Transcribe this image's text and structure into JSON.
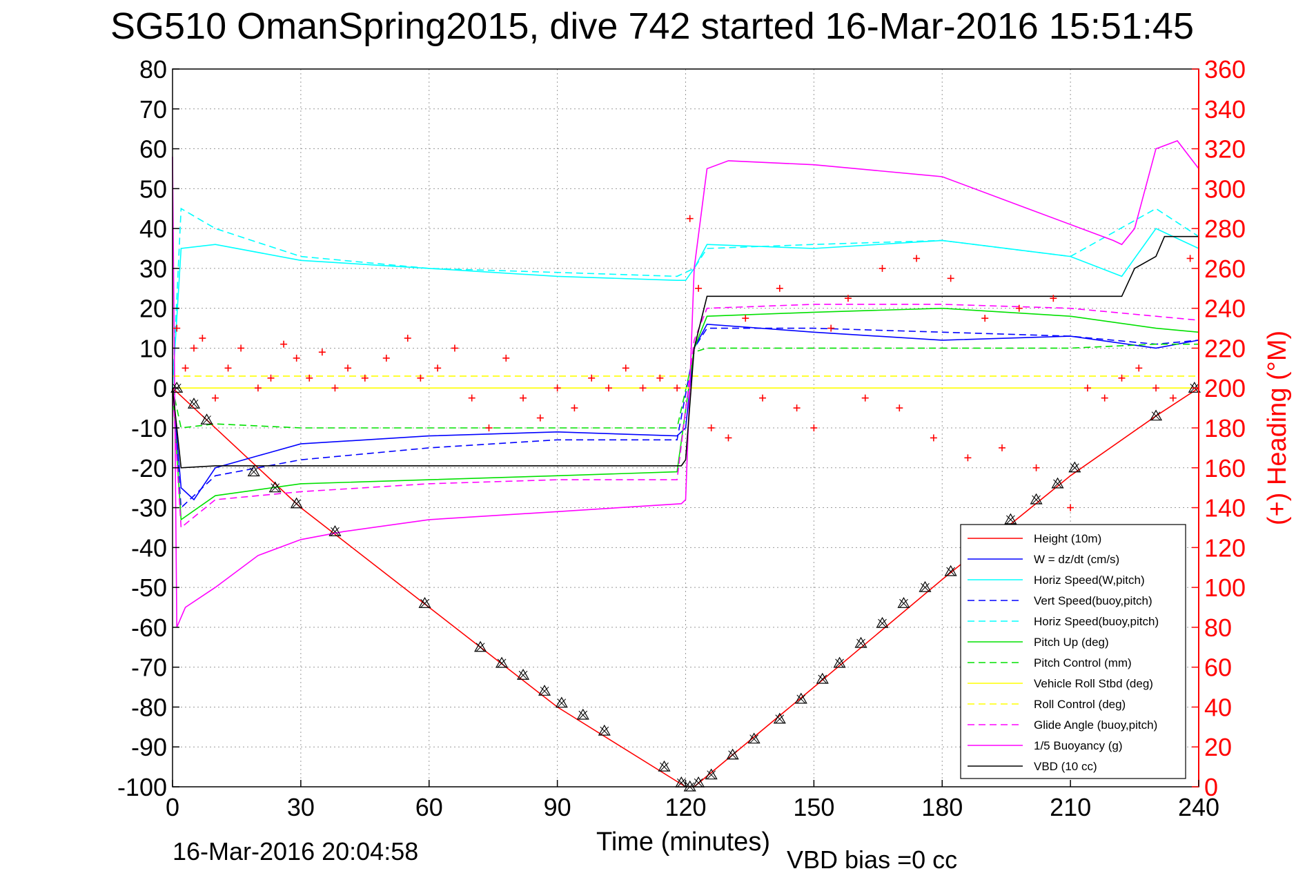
{
  "chart_data": {
    "type": "line",
    "title": "SG510 OmanSpring2015, dive 742 started 16-Mar-2016 15:51:45",
    "xlabel": "Time (minutes)",
    "ylabel_right": "(+) Heading (°M)",
    "footer_timestamp": "16-Mar-2016 20:04:58",
    "footer_note": "VBD bias =0 cc",
    "xlim": [
      0,
      240
    ],
    "ylim_left": [
      -100,
      80
    ],
    "ylim_right": [
      0,
      360
    ],
    "grid": true,
    "legend_position": "bottom-right",
    "x_ticks": [
      "0",
      "30",
      "60",
      "90",
      "120",
      "150",
      "180",
      "210",
      "240"
    ],
    "y_ticks_left": [
      "80",
      "70",
      "60",
      "50",
      "40",
      "30",
      "20",
      "10",
      "0",
      "-10",
      "-20",
      "-30",
      "-40",
      "-50",
      "-60",
      "-70",
      "-80",
      "-90",
      "-100"
    ],
    "y_ticks_right": [
      "360",
      "340",
      "320",
      "300",
      "280",
      "260",
      "240",
      "220",
      "200",
      "180",
      "160",
      "140",
      "120",
      "100",
      "80",
      "60",
      "40",
      "20",
      "0"
    ],
    "colors": {
      "red": "#ff0000",
      "blue": "#0000ff",
      "cyan": "#00ffff",
      "green": "#00e000",
      "yellow": "#ffff00",
      "magenta": "#ff00ff",
      "black": "#000000"
    },
    "series": [
      {
        "name": "Height (10m)",
        "color": "#ff0000",
        "dash": "solid",
        "x": [
          0,
          30,
          60,
          90,
          120,
          122,
          150,
          180,
          210,
          230,
          240
        ],
        "y": [
          0,
          -30,
          -55,
          -80,
          -100,
          -100,
          -75,
          -48,
          -22,
          -7,
          0
        ]
      },
      {
        "name": "W = dz/dt (cm/s)",
        "color": "#0000ff",
        "dash": "solid",
        "x": [
          0,
          2,
          5,
          10,
          20,
          30,
          60,
          90,
          118,
          120,
          122,
          125,
          150,
          180,
          210,
          230,
          240
        ],
        "y": [
          0,
          -25,
          -28,
          -20,
          -17,
          -14,
          -12,
          -11,
          -12,
          -10,
          10,
          16,
          14,
          12,
          13,
          10,
          12
        ]
      },
      {
        "name": "Horiz Speed(W,pitch)",
        "color": "#00ffff",
        "dash": "solid",
        "x": [
          0,
          2,
          10,
          30,
          60,
          90,
          118,
          120,
          122,
          125,
          150,
          180,
          210,
          222,
          230,
          240
        ],
        "y": [
          0,
          35,
          36,
          32,
          30,
          28,
          27,
          27,
          30,
          36,
          35,
          37,
          33,
          28,
          40,
          35
        ]
      },
      {
        "name": "Vert Speed(buoy,pitch)",
        "color": "#0000ff",
        "dash": "dashed",
        "x": [
          0,
          2,
          10,
          30,
          60,
          90,
          118,
          122,
          125,
          150,
          180,
          210,
          230,
          240
        ],
        "y": [
          0,
          -30,
          -22,
          -18,
          -15,
          -13,
          -13,
          10,
          15,
          15,
          14,
          13,
          11,
          12
        ]
      },
      {
        "name": "Horiz Speed(buoy,pitch)",
        "color": "#00ffff",
        "dash": "dashed",
        "x": [
          0,
          2,
          10,
          30,
          60,
          90,
          118,
          122,
          125,
          150,
          180,
          210,
          230,
          240
        ],
        "y": [
          0,
          45,
          40,
          33,
          30,
          29,
          28,
          30,
          35,
          36,
          37,
          33,
          45,
          38
        ]
      },
      {
        "name": "Pitch Up (deg)",
        "color": "#00e000",
        "dash": "solid",
        "x": [
          0,
          2,
          10,
          30,
          60,
          90,
          118,
          122,
          125,
          150,
          180,
          210,
          230,
          240
        ],
        "y": [
          0,
          -33,
          -27,
          -24,
          -23,
          -22,
          -21,
          10,
          18,
          19,
          20,
          18,
          15,
          14
        ]
      },
      {
        "name": "Pitch Control (mm)",
        "color": "#00e000",
        "dash": "dashed",
        "x": [
          0,
          2,
          10,
          30,
          60,
          90,
          118,
          122,
          125,
          150,
          180,
          210,
          230,
          240
        ],
        "y": [
          0,
          -10,
          -9,
          -10,
          -10,
          -10,
          -10,
          9,
          10,
          10,
          10,
          10,
          11,
          11
        ]
      },
      {
        "name": "Vehicle Roll Stbd (deg)",
        "color": "#ffff00",
        "dash": "solid",
        "x": [
          0,
          30,
          60,
          90,
          120,
          150,
          180,
          210,
          240
        ],
        "y": [
          0,
          0,
          0,
          0,
          0,
          0,
          0,
          0,
          0
        ]
      },
      {
        "name": "Roll Control (deg)",
        "color": "#ffff00",
        "dash": "dashed",
        "x": [
          0,
          30,
          60,
          90,
          120,
          150,
          180,
          210,
          240
        ],
        "y": [
          3,
          3,
          3,
          3,
          3,
          3,
          3,
          3,
          3
        ]
      },
      {
        "name": "Glide Angle (buoy,pitch)",
        "color": "#ff00ff",
        "dash": "dashed",
        "x": [
          0,
          2,
          10,
          30,
          60,
          90,
          118,
          122,
          125,
          150,
          180,
          210,
          230,
          240
        ],
        "y": [
          0,
          -35,
          -28,
          -26,
          -24,
          -23,
          -23,
          12,
          20,
          21,
          21,
          20,
          18,
          17
        ]
      },
      {
        "name": "1/5 Buoyancy (g)",
        "color": "#ff00ff",
        "dash": "solid",
        "x": [
          0,
          1,
          3,
          10,
          20,
          30,
          40,
          60,
          90,
          119,
          120,
          122,
          125,
          130,
          150,
          180,
          200,
          220,
          222,
          225,
          230,
          235,
          240
        ],
        "y": [
          58,
          -60,
          -55,
          -50,
          -42,
          -38,
          -36,
          -33,
          -31,
          -29,
          -28,
          30,
          55,
          57,
          56,
          53,
          45,
          37,
          36,
          40,
          60,
          62,
          55
        ]
      },
      {
        "name": "VBD (10 cc)",
        "color": "#000000",
        "dash": "solid",
        "x": [
          0,
          2,
          10,
          30,
          60,
          90,
          119,
          120,
          122,
          125,
          150,
          180,
          210,
          222,
          225,
          230,
          232,
          240
        ],
        "y": [
          0,
          -20,
          -19.5,
          -19.5,
          -19.5,
          -19.5,
          -19.5,
          -18,
          10,
          23,
          23,
          23,
          23,
          23,
          30,
          33,
          38,
          38
        ]
      }
    ],
    "heading_series": {
      "name": "(+) Heading (°M)",
      "color": "#ff0000",
      "marker": "+",
      "x": [
        1,
        3,
        5,
        7,
        10,
        13,
        16,
        20,
        23,
        26,
        29,
        32,
        35,
        38,
        41,
        45,
        50,
        55,
        58,
        62,
        66,
        70,
        74,
        78,
        82,
        86,
        90,
        94,
        98,
        102,
        106,
        110,
        114,
        118,
        121,
        123,
        126,
        130,
        134,
        138,
        142,
        146,
        150,
        154,
        158,
        162,
        166,
        170,
        174,
        178,
        182,
        186,
        190,
        194,
        198,
        202,
        206,
        210,
        214,
        218,
        222,
        226,
        230,
        234,
        238
      ],
      "y": [
        230,
        210,
        220,
        225,
        195,
        210,
        220,
        200,
        205,
        222,
        215,
        205,
        218,
        200,
        210,
        205,
        215,
        225,
        205,
        210,
        220,
        195,
        180,
        215,
        195,
        185,
        200,
        190,
        205,
        200,
        210,
        200,
        205,
        200,
        285,
        250,
        180,
        175,
        235,
        195,
        250,
        190,
        180,
        230,
        245,
        195,
        260,
        190,
        265,
        175,
        255,
        165,
        235,
        170,
        240,
        160,
        245,
        140,
        200,
        195,
        205,
        210,
        200,
        195,
        265
      ]
    },
    "height_markers": {
      "x": [
        1,
        5,
        8,
        19,
        24,
        29,
        38,
        59,
        72,
        77,
        82,
        87,
        91,
        96,
        101,
        115,
        119,
        121,
        123,
        126,
        131,
        136,
        142,
        147,
        152,
        156,
        161,
        166,
        171,
        176,
        182,
        196,
        202,
        207,
        211,
        230,
        239
      ],
      "y": [
        0,
        -4,
        -8,
        -21,
        -25,
        -29,
        -36,
        -54,
        -65,
        -69,
        -72,
        -76,
        -79,
        -82,
        -86,
        -95,
        -99,
        -100,
        -99,
        -97,
        -92,
        -88,
        -83,
        -78,
        -73,
        -69,
        -64,
        -59,
        -54,
        -50,
        -46,
        -33,
        -28,
        -24,
        -20,
        -7,
        0
      ]
    }
  }
}
